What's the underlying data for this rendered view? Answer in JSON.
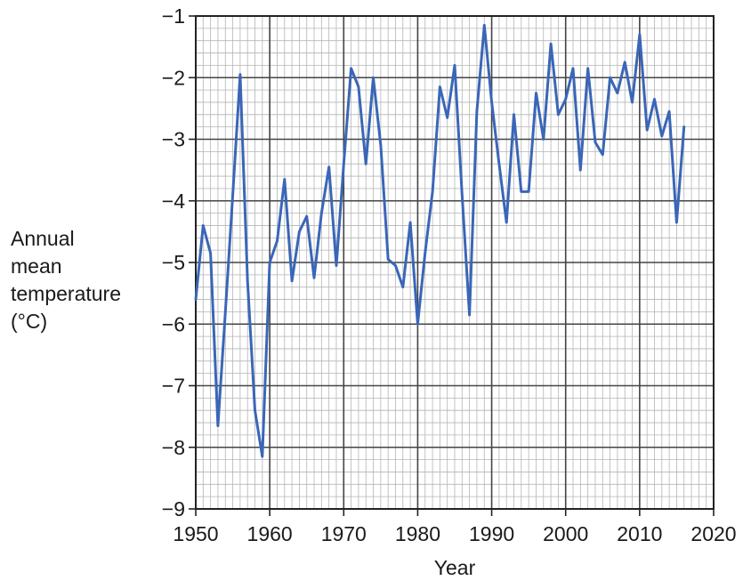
{
  "chart_data": {
    "type": "line",
    "title": "",
    "xlabel": "Year",
    "ylabel_lines": [
      "Annual",
      "mean",
      "temperature",
      "(°C)"
    ],
    "xlim": [
      1950,
      2020
    ],
    "ylim": [
      -9,
      -1
    ],
    "x_ticks": [
      1950,
      1960,
      1970,
      1980,
      1990,
      2000,
      2010,
      2020
    ],
    "y_ticks": [
      -1,
      -2,
      -3,
      -4,
      -5,
      -6,
      -7,
      -8,
      -9
    ],
    "x_minor_step": 1,
    "y_minor_step": 0.2,
    "grid": true,
    "series": [
      {
        "color": "#3a66b8",
        "x": [
          1950,
          1951,
          1952,
          1953,
          1954,
          1955,
          1956,
          1957,
          1958,
          1959,
          1960,
          1961,
          1962,
          1963,
          1964,
          1965,
          1966,
          1967,
          1968,
          1969,
          1970,
          1971,
          1972,
          1973,
          1974,
          1975,
          1976,
          1977,
          1978,
          1979,
          1980,
          1981,
          1982,
          1983,
          1984,
          1985,
          1986,
          1987,
          1988,
          1989,
          1990,
          1991,
          1992,
          1993,
          1994,
          1995,
          1996,
          1997,
          1998,
          1999,
          2000,
          2001,
          2002,
          2003,
          2004,
          2005,
          2006,
          2007,
          2008,
          2009,
          2010,
          2011,
          2012,
          2013,
          2014,
          2015,
          2016
        ],
        "y": [
          -5.6,
          -4.4,
          -4.85,
          -7.65,
          -5.8,
          -3.9,
          -1.95,
          -5.3,
          -7.4,
          -8.15,
          -5.0,
          -4.65,
          -3.65,
          -5.3,
          -4.5,
          -4.25,
          -5.25,
          -4.2,
          -3.45,
          -5.05,
          -3.4,
          -1.85,
          -2.15,
          -3.4,
          -2.0,
          -3.1,
          -4.95,
          -5.05,
          -5.4,
          -4.35,
          -6.0,
          -4.85,
          -3.85,
          -2.15,
          -2.65,
          -1.8,
          -3.9,
          -5.85,
          -2.55,
          -1.15,
          -2.4,
          -3.4,
          -4.35,
          -2.6,
          -3.85,
          -3.85,
          -2.25,
          -3.0,
          -1.45,
          -2.6,
          -2.35,
          -1.85,
          -3.5,
          -1.85,
          -3.05,
          -3.25,
          -2.0,
          -2.25,
          -1.75,
          -2.4,
          -1.3,
          -2.85,
          -2.35,
          -2.95,
          -2.55,
          -4.35,
          -2.8
        ]
      }
    ]
  }
}
